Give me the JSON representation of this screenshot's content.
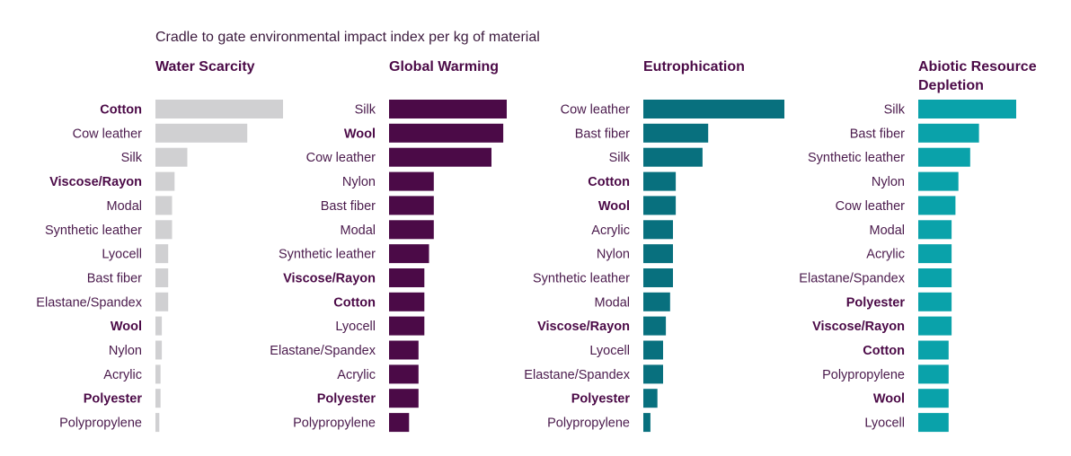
{
  "chart_data": {
    "type": "bar",
    "orientation": "horizontal",
    "title": "Cradle to gate environmental impact index per kg of material",
    "panels": [
      {
        "title_lines": [
          "Water Scarcity"
        ],
        "color": "#d0d0d2",
        "title_color": "#4b0a47",
        "categories": [
          "Cotton",
          "Cow leather",
          "Silk",
          "Viscose/Rayon",
          "Modal",
          "Synthetic leather",
          "Lyocell",
          "Bast fiber",
          "Elastane/Spandex",
          "Wool",
          "Nylon",
          "Acrylic",
          "Polyester",
          "Polypropylene"
        ],
        "bold": [
          "Cotton",
          "Viscose/Rayon",
          "Wool",
          "Polyester"
        ],
        "values": [
          100,
          72,
          25,
          15,
          13,
          13,
          10,
          10,
          10,
          5,
          5,
          4,
          4,
          3
        ]
      },
      {
        "title_lines": [
          "Global Warming"
        ],
        "color": "#4b0a47",
        "title_color": "#4b0a47",
        "categories": [
          "Silk",
          "Wool",
          "Cow leather",
          "Nylon",
          "Bast fiber",
          "Modal",
          "Synthetic leather",
          "Viscose/Rayon",
          "Cotton",
          "Lyocell",
          "Elastane/Spandex",
          "Acrylic",
          "Polyester",
          "Polypropylene"
        ],
        "bold": [
          "Wool",
          "Viscose/Rayon",
          "Cotton",
          "Polyester"
        ],
        "values": [
          100,
          97,
          87,
          38,
          38,
          38,
          34,
          30,
          30,
          30,
          25,
          25,
          25,
          17
        ]
      },
      {
        "title_lines": [
          "Eutrophication"
        ],
        "color": "#08707e",
        "title_color": "#4b0a47",
        "categories": [
          "Cow leather",
          "Bast fiber",
          "Silk",
          "Cotton",
          "Wool",
          "Acrylic",
          "Nylon",
          "Synthetic leather",
          "Modal",
          "Viscose/Rayon",
          "Lyocell",
          "Elastane/Spandex",
          "Polyester",
          "Polypropylene"
        ],
        "bold": [
          "Cotton",
          "Wool",
          "Viscose/Rayon",
          "Polyester"
        ],
        "values": [
          100,
          46,
          42,
          23,
          23,
          21,
          21,
          21,
          19,
          16,
          14,
          14,
          10,
          5
        ]
      },
      {
        "title_lines": [
          "Abiotic Resource",
          "Depletion"
        ],
        "color": "#0aa2aa",
        "title_color": "#4b0a47",
        "categories": [
          "Silk",
          "Bast fiber",
          "Synthetic leather",
          "Nylon",
          "Cow leather",
          "Modal",
          "Acrylic",
          "Elastane/Spandex",
          "Polyester",
          "Viscose/Rayon",
          "Cotton",
          "Polypropylene",
          "Wool",
          "Lyocell"
        ],
        "bold": [
          "Polyester",
          "Viscose/Rayon",
          "Cotton",
          "Wool"
        ],
        "values": [
          100,
          62,
          53,
          41,
          38,
          34,
          34,
          34,
          34,
          34,
          31,
          31,
          31,
          31
        ]
      }
    ]
  }
}
